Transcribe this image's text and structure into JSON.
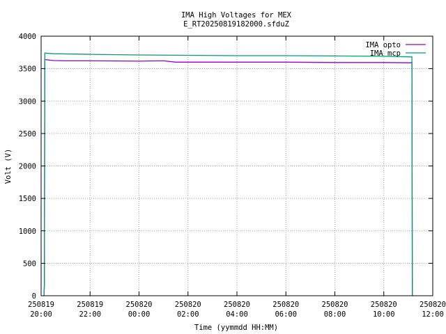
{
  "chart_data": {
    "type": "line",
    "title": "IMA High Voltages for MEX",
    "subtitle": "E_RT20250819182000.sfduZ",
    "xlabel": "Time (yymmdd HH:MM)",
    "ylabel": "Volt (V)",
    "xlim": [
      "250819 20:00",
      "250820 12:00"
    ],
    "ylim": [
      0,
      4000
    ],
    "grid": true,
    "legend_position": "top-right",
    "x_ticks": [
      {
        "date": "250819",
        "time": "20:00"
      },
      {
        "date": "250819",
        "time": "22:00"
      },
      {
        "date": "250820",
        "time": "00:00"
      },
      {
        "date": "250820",
        "time": "02:00"
      },
      {
        "date": "250820",
        "time": "04:00"
      },
      {
        "date": "250820",
        "time": "06:00"
      },
      {
        "date": "250820",
        "time": "08:00"
      },
      {
        "date": "250820",
        "time": "10:00"
      },
      {
        "date": "250820",
        "time": "12:00"
      }
    ],
    "y_ticks": [
      "0",
      "500",
      "1000",
      "1500",
      "2000",
      "2500",
      "3000",
      "3500",
      "4000"
    ],
    "series": [
      {
        "name": "IMA opto",
        "color": "#9400d3",
        "points": [
          [
            "250819 20:07",
            0
          ],
          [
            "250819 20:08",
            200
          ],
          [
            "250819 20:09",
            3640
          ],
          [
            "250819 20:30",
            3625
          ],
          [
            "250819 21:00",
            3620
          ],
          [
            "250819 22:00",
            3620
          ],
          [
            "250820 00:00",
            3615
          ],
          [
            "250820 01:00",
            3620
          ],
          [
            "250820 01:30",
            3600
          ],
          [
            "250820 04:00",
            3600
          ],
          [
            "250820 06:00",
            3600
          ],
          [
            "250820 08:00",
            3595
          ],
          [
            "250820 10:00",
            3595
          ],
          [
            "250820 11:00",
            3590
          ],
          [
            "250820 11:09",
            3590
          ],
          [
            "250820 11:10",
            0
          ]
        ]
      },
      {
        "name": "IMA mcp",
        "color": "#009e73",
        "points": [
          [
            "250819 20:07",
            0
          ],
          [
            "250819 20:08",
            150
          ],
          [
            "250819 20:09",
            3740
          ],
          [
            "250819 20:30",
            3730
          ],
          [
            "250819 22:00",
            3720
          ],
          [
            "250820 00:00",
            3710
          ],
          [
            "250820 02:00",
            3705
          ],
          [
            "250820 04:00",
            3700
          ],
          [
            "250820 06:00",
            3700
          ],
          [
            "250820 08:00",
            3695
          ],
          [
            "250820 10:00",
            3690
          ],
          [
            "250820 11:09",
            3680
          ],
          [
            "250820 11:10",
            0
          ]
        ]
      }
    ]
  }
}
